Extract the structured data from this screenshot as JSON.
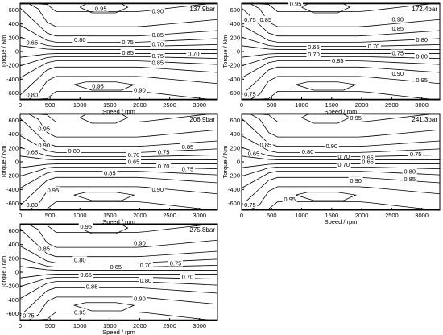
{
  "chart_data": [
    {
      "type": "contour",
      "title": "137.9bar",
      "xlabel": "Speed / rpm",
      "ylabel": "Torque / Nm",
      "xlim": [
        0,
        3300
      ],
      "ylim": [
        -700,
        700
      ],
      "xticks": [
        0,
        500,
        1000,
        1500,
        2000,
        2500,
        3000
      ],
      "yticks": [
        -600,
        -400,
        -200,
        0,
        200,
        400,
        600
      ],
      "contour_labels": [
        {
          "text": "0.95",
          "x": 1350,
          "y": 600
        },
        {
          "text": "0.90",
          "x": 2300,
          "y": 565
        },
        {
          "text": "0.85",
          "x": 2300,
          "y": 220
        },
        {
          "text": "0.80",
          "x": 1000,
          "y": 150
        },
        {
          "text": "0.75",
          "x": 1800,
          "y": 115
        },
        {
          "text": "0.70",
          "x": 2300,
          "y": 85
        },
        {
          "text": "0.65",
          "x": 200,
          "y": 110
        },
        {
          "text": "0.85",
          "x": 1800,
          "y": -35
        },
        {
          "text": "0.75",
          "x": 2300,
          "y": -80
        },
        {
          "text": "0.70",
          "x": 2900,
          "y": -55
        },
        {
          "text": "0.85",
          "x": 2300,
          "y": -180
        },
        {
          "text": "0.95",
          "x": 1300,
          "y": -520
        },
        {
          "text": "0.90",
          "x": 2000,
          "y": -580
        },
        {
          "text": "0.80",
          "x": 200,
          "y": -650
        }
      ]
    },
    {
      "type": "contour",
      "title": "172.4bar",
      "xlabel": "Speed / rpm",
      "ylabel": "Torque / Nm",
      "xlim": [
        0,
        3300
      ],
      "ylim": [
        -700,
        700
      ],
      "xticks": [
        0,
        500,
        1000,
        1500,
        2000,
        2500,
        3000
      ],
      "yticks": [
        -600,
        -400,
        -200,
        0,
        200,
        400,
        600
      ],
      "contour_labels": [
        {
          "text": "0.95",
          "x": 900,
          "y": 670
        },
        {
          "text": "0.90",
          "x": 2600,
          "y": 450
        },
        {
          "text": "0.75",
          "x": 140,
          "y": 445
        },
        {
          "text": "0.85",
          "x": 400,
          "y": 445
        },
        {
          "text": "0.85",
          "x": 2600,
          "y": 315
        },
        {
          "text": "0.80",
          "x": 3000,
          "y": 150
        },
        {
          "text": "0.70",
          "x": 2200,
          "y": 60
        },
        {
          "text": "0.65",
          "x": 1200,
          "y": 45
        },
        {
          "text": "0.70",
          "x": 1200,
          "y": -60
        },
        {
          "text": "0.75",
          "x": 2600,
          "y": -40
        },
        {
          "text": "0.80",
          "x": 3000,
          "y": -90
        },
        {
          "text": "0.85",
          "x": 1600,
          "y": -150
        },
        {
          "text": "0.90",
          "x": 2600,
          "y": -340
        },
        {
          "text": "0.95",
          "x": 3000,
          "y": -430
        },
        {
          "text": "0.75",
          "x": 140,
          "y": -635
        }
      ]
    },
    {
      "type": "contour",
      "title": "206.9bar",
      "xlabel": "Speed / rpm",
      "ylabel": "Torque / Nm",
      "xlim": [
        0,
        3300
      ],
      "ylim": [
        -700,
        700
      ],
      "xticks": [
        0,
        500,
        1000,
        1500,
        2000,
        2500,
        3000
      ],
      "yticks": [
        -600,
        -400,
        -200,
        0,
        200,
        400,
        600
      ],
      "contour_labels": [
        {
          "text": "0.95",
          "x": 400,
          "y": 460
        },
        {
          "text": "0.90",
          "x": 400,
          "y": 220
        },
        {
          "text": "0.65",
          "x": 200,
          "y": 120
        },
        {
          "text": "0.80",
          "x": 900,
          "y": 140
        },
        {
          "text": "0.85",
          "x": 2800,
          "y": 200
        },
        {
          "text": "0.75",
          "x": 2400,
          "y": 120
        },
        {
          "text": "0.70",
          "x": 1900,
          "y": 80
        },
        {
          "text": "0.65",
          "x": 1900,
          "y": -20
        },
        {
          "text": "0.70",
          "x": 2400,
          "y": -80
        },
        {
          "text": "0.75",
          "x": 2800,
          "y": -120
        },
        {
          "text": "0.85",
          "x": 1500,
          "y": -180
        },
        {
          "text": "0.90",
          "x": 2300,
          "y": -420
        },
        {
          "text": "0.95",
          "x": 550,
          "y": -430
        },
        {
          "text": "0.80",
          "x": 200,
          "y": -640
        }
      ]
    },
    {
      "type": "contour",
      "title": "241.3bar",
      "xlabel": "Speed / rpm",
      "ylabel": "Torque / Nm",
      "xlim": [
        0,
        3300
      ],
      "ylim": [
        -700,
        700
      ],
      "xticks": [
        0,
        500,
        1000,
        1500,
        2000,
        2500,
        3000
      ],
      "yticks": [
        -600,
        -400,
        -200,
        0,
        200,
        400,
        600
      ],
      "contour_labels": [
        {
          "text": "0.95",
          "x": 1900,
          "y": 620
        },
        {
          "text": "0.85",
          "x": 400,
          "y": 230
        },
        {
          "text": "0.90",
          "x": 1500,
          "y": 210
        },
        {
          "text": "0.65",
          "x": 200,
          "y": 100
        },
        {
          "text": "0.80",
          "x": 1100,
          "y": 130
        },
        {
          "text": "0.75",
          "x": 2900,
          "y": 95
        },
        {
          "text": "0.70",
          "x": 1700,
          "y": 60
        },
        {
          "text": "0.65",
          "x": 2100,
          "y": 40
        },
        {
          "text": "0.70",
          "x": 1700,
          "y": -60
        },
        {
          "text": "0.65",
          "x": 2100,
          "y": -20
        },
        {
          "text": "0.80",
          "x": 2800,
          "y": -160
        },
        {
          "text": "0.85",
          "x": 2800,
          "y": -270
        },
        {
          "text": "0.90",
          "x": 1900,
          "y": -290
        },
        {
          "text": "0.95",
          "x": 800,
          "y": -560
        },
        {
          "text": "0.75",
          "x": 140,
          "y": -640
        }
      ]
    },
    {
      "type": "contour",
      "title": "275.8bar",
      "xlabel": "Speed / rpm",
      "ylabel": "Torque / Nm",
      "xlim": [
        0,
        3300
      ],
      "ylim": [
        -700,
        700
      ],
      "xticks": [
        0,
        500,
        1000,
        1500,
        2000,
        2500,
        3000
      ],
      "yticks": [
        -600,
        -400,
        -200,
        0,
        200,
        400,
        600
      ],
      "contour_labels": [
        {
          "text": "0.95",
          "x": 1100,
          "y": 640
        },
        {
          "text": "0.90",
          "x": 2000,
          "y": 400
        },
        {
          "text": "0.85",
          "x": 400,
          "y": 320
        },
        {
          "text": "0.80",
          "x": 1000,
          "y": 160
        },
        {
          "text": "0.75",
          "x": 2600,
          "y": 110
        },
        {
          "text": "0.70",
          "x": 2100,
          "y": 80
        },
        {
          "text": "0.65",
          "x": 1600,
          "y": 60
        },
        {
          "text": "0.65",
          "x": 1100,
          "y": -60
        },
        {
          "text": "0.70",
          "x": 2800,
          "y": -90
        },
        {
          "text": "0.80",
          "x": 2100,
          "y": -140
        },
        {
          "text": "0.85",
          "x": 1200,
          "y": -230
        },
        {
          "text": "0.90",
          "x": 2000,
          "y": -400
        },
        {
          "text": "0.95",
          "x": 1000,
          "y": -600
        },
        {
          "text": "0.75",
          "x": 140,
          "y": -650
        }
      ]
    }
  ]
}
